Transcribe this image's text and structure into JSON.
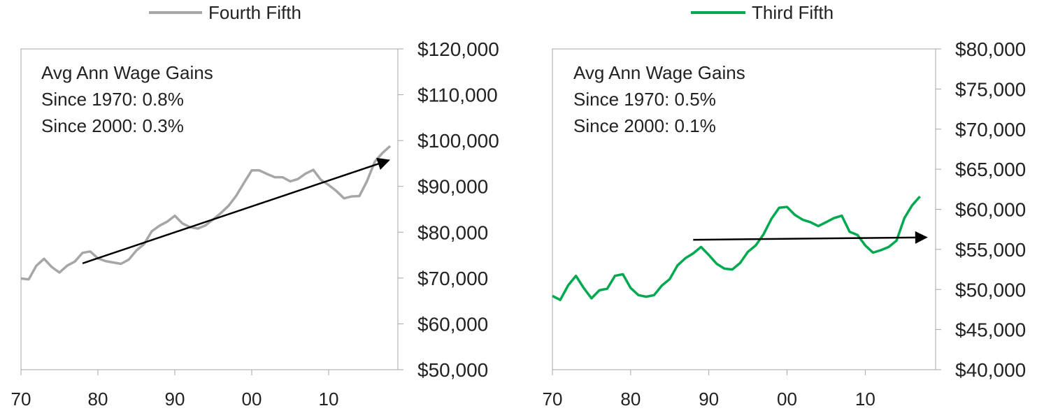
{
  "chart_data": [
    {
      "type": "line",
      "legend": {
        "label": "Fourth Fifth",
        "placement": "top"
      },
      "annotation": [
        "Avg Ann Wage Gains",
        "Since 1970: 0.8%",
        "Since 2000: 0.3%"
      ],
      "x_tick_labels": [
        "70",
        "80",
        "90",
        "00",
        "10"
      ],
      "x_ticks": [
        1970,
        1980,
        1990,
        2000,
        2010
      ],
      "xlim": [
        1970,
        2019
      ],
      "ylim": [
        50000,
        120000
      ],
      "y_ticks": [
        50000,
        60000,
        70000,
        80000,
        90000,
        100000,
        110000,
        120000
      ],
      "y_tick_labels": [
        "$50,000",
        "$60,000",
        "$70,000",
        "$80,000",
        "$90,000",
        "$100,000",
        "$110,000",
        "$120,000"
      ],
      "y_axis_side": "right",
      "grid": false,
      "series": [
        {
          "name": "Fourth Fifth",
          "color": "#a6a6a6",
          "x": [
            1970,
            1971,
            1972,
            1973,
            1974,
            1975,
            1976,
            1977,
            1978,
            1979,
            1980,
            1981,
            1982,
            1983,
            1984,
            1985,
            1986,
            1987,
            1988,
            1989,
            1990,
            1991,
            1992,
            1993,
            1994,
            1995,
            1996,
            1997,
            1998,
            1999,
            2000,
            2001,
            2002,
            2003,
            2004,
            2005,
            2006,
            2007,
            2008,
            2009,
            2010,
            2011,
            2012,
            2013,
            2014,
            2015,
            2016,
            2017,
            2018
          ],
          "y": [
            69900,
            69700,
            72700,
            74200,
            72400,
            71200,
            72700,
            73600,
            75500,
            75800,
            74300,
            73700,
            73400,
            73100,
            74000,
            76000,
            77400,
            80200,
            81400,
            82300,
            83600,
            81900,
            81100,
            80800,
            81500,
            82800,
            84200,
            85800,
            88000,
            90800,
            93500,
            93500,
            92700,
            92000,
            92000,
            91100,
            91600,
            92800,
            93600,
            91400,
            90300,
            89000,
            87400,
            87800,
            87900,
            91200,
            95400,
            97300,
            98800
          ]
        }
      ],
      "trend_arrow": {
        "color": "#000000",
        "from": [
          1978,
          73200
        ],
        "to": [
          2018,
          95800
        ]
      }
    },
    {
      "type": "line",
      "legend": {
        "label": "Third Fifth",
        "placement": "top"
      },
      "annotation": [
        "Avg Ann Wage Gains",
        "Since 1970: 0.5%",
        "Since 2000: 0.1%"
      ],
      "x_tick_labels": [
        "70",
        "80",
        "90",
        "00",
        "10"
      ],
      "x_ticks": [
        1970,
        1980,
        1990,
        2000,
        2010
      ],
      "xlim": [
        1970,
        2019
      ],
      "ylim": [
        40000,
        80000
      ],
      "y_ticks": [
        40000,
        45000,
        50000,
        55000,
        60000,
        65000,
        70000,
        75000,
        80000
      ],
      "y_tick_labels": [
        "$40,000",
        "$45,000",
        "$50,000",
        "$55,000",
        "$60,000",
        "$65,000",
        "$70,000",
        "$75,000",
        "$80,000"
      ],
      "y_axis_side": "right",
      "grid": false,
      "series": [
        {
          "name": "Third Fifth",
          "color": "#00a94f",
          "x": [
            1970,
            1971,
            1972,
            1973,
            1974,
            1975,
            1976,
            1977,
            1978,
            1979,
            1980,
            1981,
            1982,
            1983,
            1984,
            1985,
            1986,
            1987,
            1988,
            1989,
            1990,
            1991,
            1992,
            1993,
            1994,
            1995,
            1996,
            1997,
            1998,
            1999,
            2000,
            2001,
            2002,
            2003,
            2004,
            2005,
            2006,
            2007,
            2008,
            2009,
            2010,
            2011,
            2012,
            2013,
            2014,
            2015,
            2016,
            2017,
            2018
          ],
          "y": [
            49200,
            48700,
            50500,
            51700,
            50200,
            48900,
            49900,
            50100,
            51700,
            51900,
            50200,
            49300,
            49100,
            49300,
            50500,
            51300,
            53000,
            53900,
            54500,
            55300,
            54300,
            53200,
            52600,
            52500,
            53300,
            54700,
            55500,
            56900,
            58800,
            60200,
            60300,
            59300,
            58700,
            58400,
            57900,
            58400,
            58900,
            59200,
            57200,
            56800,
            55500,
            54600,
            54900,
            55300,
            56100,
            58900,
            60500,
            61600,
            null
          ]
        }
      ],
      "trend_arrow": {
        "color": "#000000",
        "from": [
          1988,
          56200
        ],
        "to": [
          2018,
          56500
        ]
      }
    }
  ]
}
